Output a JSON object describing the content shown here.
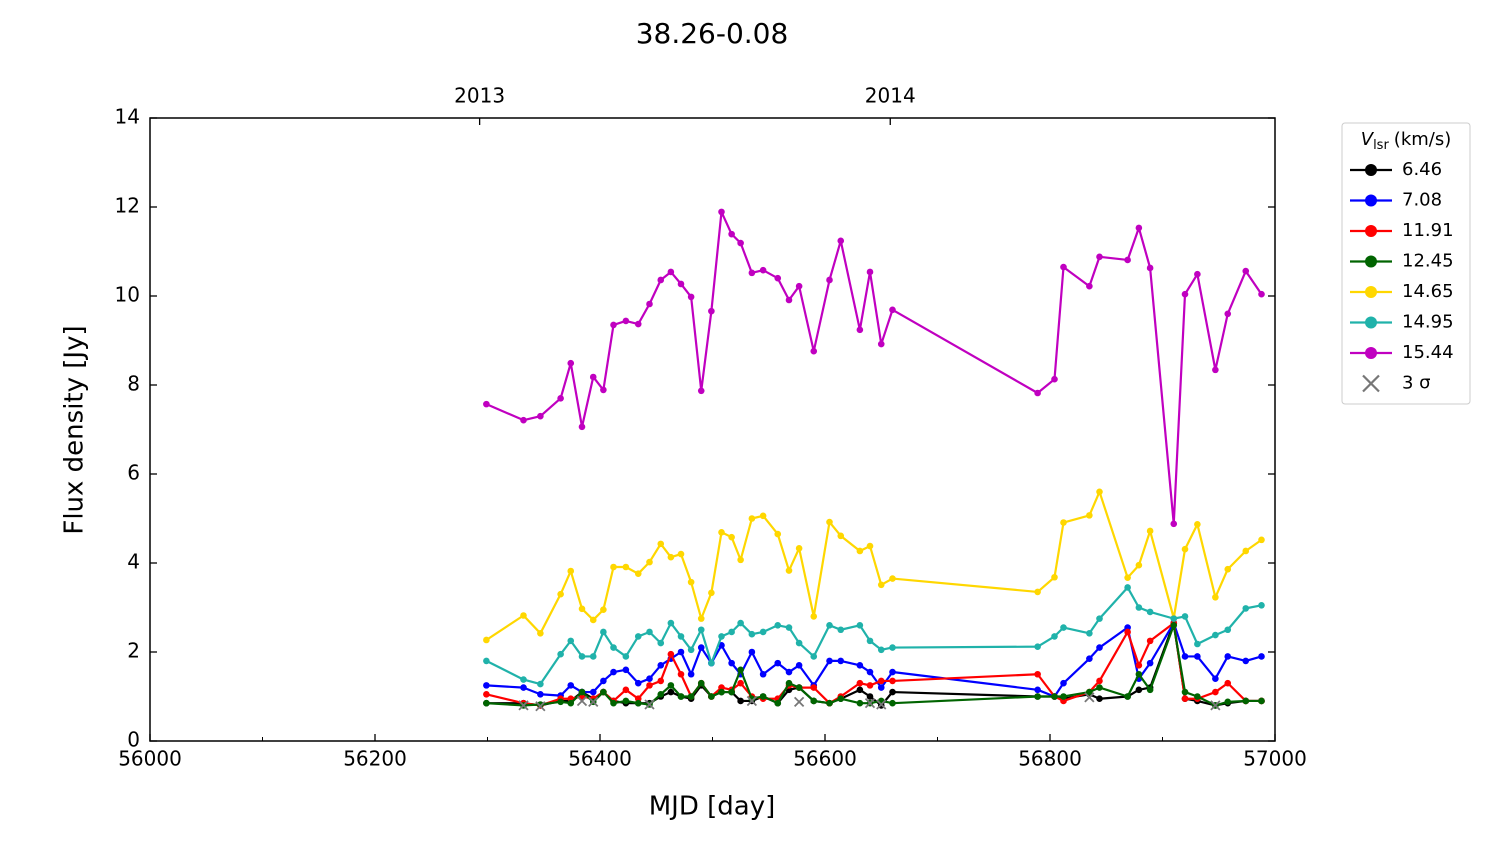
{
  "chart_data": {
    "type": "line",
    "title": "38.26-0.08",
    "x_label": "MJD [day]",
    "y_label": "Flux density [Jy]",
    "xlim": [
      56000,
      57000
    ],
    "ylim": [
      0,
      14
    ],
    "xticks": [
      56000,
      56200,
      56400,
      56600,
      56800,
      57000
    ],
    "xticks_minor": [
      56100,
      56300,
      56500,
      56700,
      56900
    ],
    "yticks": [
      0,
      2,
      4,
      6,
      8,
      10,
      12,
      14
    ],
    "top_xticks": [
      {
        "value": 56293,
        "label": "2013"
      },
      {
        "value": 56658,
        "label": "2014"
      }
    ],
    "legend_title": {
      "symbol": "V",
      "subscript": "lsr",
      "unit": "(km/s)"
    },
    "legend_position": "outside-upper-right",
    "x": [
      56299,
      56332,
      56347,
      56365,
      56374,
      56384,
      56394,
      56403,
      56412,
      56423,
      56434,
      56444,
      56454,
      56463,
      56472,
      56481,
      56490,
      56499,
      56508,
      56517,
      56525,
      56535,
      56545,
      56558,
      56568,
      56577,
      56590,
      56604,
      56614,
      56631,
      56640,
      56650,
      56660,
      56789,
      56804,
      56812,
      56835,
      56844,
      56869,
      56879,
      56889,
      56910,
      56920,
      56931,
      56947,
      56958,
      56974,
      56988
    ],
    "series": [
      {
        "name": "6.46",
        "color": "#000000",
        "values": [
          0.85,
          0.85,
          0.8,
          0.9,
          0.9,
          1.1,
          0.95,
          1.1,
          0.9,
          0.85,
          0.85,
          0.85,
          1.0,
          1.1,
          1.0,
          0.95,
          1.25,
          1.0,
          1.1,
          1.1,
          0.9,
          0.9,
          1.0,
          0.85,
          1.15,
          1.2,
          0.9,
          0.85,
          0.95,
          1.15,
          1.0,
          0.8,
          1.1,
          1.0,
          1.0,
          0.95,
          1.05,
          0.95,
          1.0,
          1.15,
          1.2,
          2.65,
          0.95,
          0.9,
          0.8,
          0.85,
          0.9,
          0.9
        ]
      },
      {
        "name": "7.08",
        "color": "#0000ff",
        "values": [
          1.25,
          1.2,
          1.05,
          1.02,
          1.25,
          1.1,
          1.1,
          1.35,
          1.55,
          1.6,
          1.3,
          1.4,
          1.7,
          1.85,
          2.0,
          1.5,
          2.1,
          1.75,
          2.15,
          1.75,
          1.5,
          2.0,
          1.5,
          1.75,
          1.55,
          1.7,
          1.25,
          1.8,
          1.8,
          1.7,
          1.55,
          1.2,
          1.55,
          1.15,
          1.0,
          1.3,
          1.85,
          2.1,
          2.55,
          1.4,
          1.75,
          2.65,
          1.9,
          1.9,
          1.4,
          1.9,
          1.8,
          1.9
        ]
      },
      {
        "name": "11.91",
        "color": "#ff0000",
        "values": [
          1.05,
          0.85,
          0.8,
          0.95,
          0.95,
          1.0,
          0.95,
          1.1,
          0.9,
          1.15,
          0.95,
          1.25,
          1.35,
          1.95,
          1.5,
          1.0,
          1.3,
          1.0,
          1.2,
          1.15,
          1.3,
          1.0,
          0.95,
          0.95,
          1.25,
          1.2,
          1.2,
          0.85,
          1.0,
          1.3,
          1.25,
          1.35,
          1.35,
          1.5,
          1.0,
          0.9,
          1.1,
          1.35,
          2.45,
          1.7,
          2.25,
          2.65,
          0.95,
          0.95,
          1.1,
          1.3,
          0.9,
          0.9
        ]
      },
      {
        "name": "12.45",
        "color": "#006400",
        "values": [
          0.85,
          0.8,
          0.82,
          0.88,
          0.85,
          1.1,
          0.88,
          1.1,
          0.85,
          0.9,
          0.85,
          0.82,
          1.05,
          1.25,
          1.0,
          1.0,
          1.3,
          1.0,
          1.1,
          1.1,
          1.6,
          0.95,
          1.0,
          0.85,
          1.3,
          1.2,
          0.9,
          0.85,
          0.95,
          0.85,
          0.85,
          0.9,
          0.85,
          1.0,
          1.0,
          1.0,
          1.1,
          1.2,
          1.0,
          1.5,
          1.15,
          2.6,
          1.1,
          1.0,
          0.8,
          0.88,
          0.9,
          0.9
        ]
      },
      {
        "name": "14.65",
        "color": "#ffd700",
        "values": [
          2.27,
          2.82,
          2.42,
          3.3,
          3.82,
          2.97,
          2.72,
          2.95,
          3.91,
          3.91,
          3.76,
          4.02,
          4.43,
          4.13,
          4.2,
          3.57,
          2.75,
          3.33,
          4.69,
          4.58,
          4.07,
          5.0,
          5.06,
          4.65,
          3.83,
          4.33,
          2.8,
          4.92,
          4.61,
          4.27,
          4.38,
          3.51,
          3.65,
          3.35,
          3.68,
          4.91,
          5.07,
          5.6,
          3.67,
          3.95,
          4.72,
          2.76,
          4.31,
          4.87,
          3.23,
          3.86,
          4.27,
          4.52
        ]
      },
      {
        "name": "14.95",
        "color": "#20b2aa",
        "values": [
          1.8,
          1.38,
          1.28,
          1.95,
          2.25,
          1.9,
          1.9,
          2.45,
          2.1,
          1.9,
          2.35,
          2.45,
          2.2,
          2.65,
          2.35,
          2.05,
          2.5,
          1.75,
          2.35,
          2.45,
          2.65,
          2.4,
          2.45,
          2.6,
          2.55,
          2.2,
          1.9,
          2.6,
          2.5,
          2.6,
          2.25,
          2.05,
          2.1,
          2.12,
          2.35,
          2.55,
          2.42,
          2.75,
          3.45,
          3.0,
          2.9,
          2.75,
          2.8,
          2.18,
          2.38,
          2.5,
          2.98,
          3.05
        ]
      },
      {
        "name": "15.44",
        "color": "#c000c0",
        "values": [
          7.57,
          7.21,
          7.3,
          7.7,
          8.49,
          7.06,
          8.18,
          7.89,
          9.35,
          9.44,
          9.37,
          9.82,
          10.36,
          10.54,
          10.27,
          9.98,
          7.87,
          9.66,
          11.89,
          11.39,
          11.19,
          10.52,
          10.58,
          10.4,
          9.91,
          10.22,
          8.76,
          10.36,
          11.24,
          9.24,
          10.54,
          8.92,
          9.69,
          7.82,
          8.13,
          10.65,
          10.22,
          10.88,
          10.81,
          11.53,
          10.63,
          4.88,
          10.04,
          10.49,
          8.34,
          9.6,
          10.56,
          10.04
        ]
      },
      {
        "name": "3 σ",
        "color": "#777777",
        "marker": "x",
        "line": false,
        "x": [
          56332,
          56347,
          56384,
          56394,
          56444,
          56535,
          56577,
          56640,
          56650,
          56835,
          56947
        ],
        "values": [
          0.8,
          0.78,
          0.9,
          0.88,
          0.82,
          0.9,
          0.88,
          0.85,
          0.82,
          0.98,
          0.8
        ]
      }
    ]
  }
}
